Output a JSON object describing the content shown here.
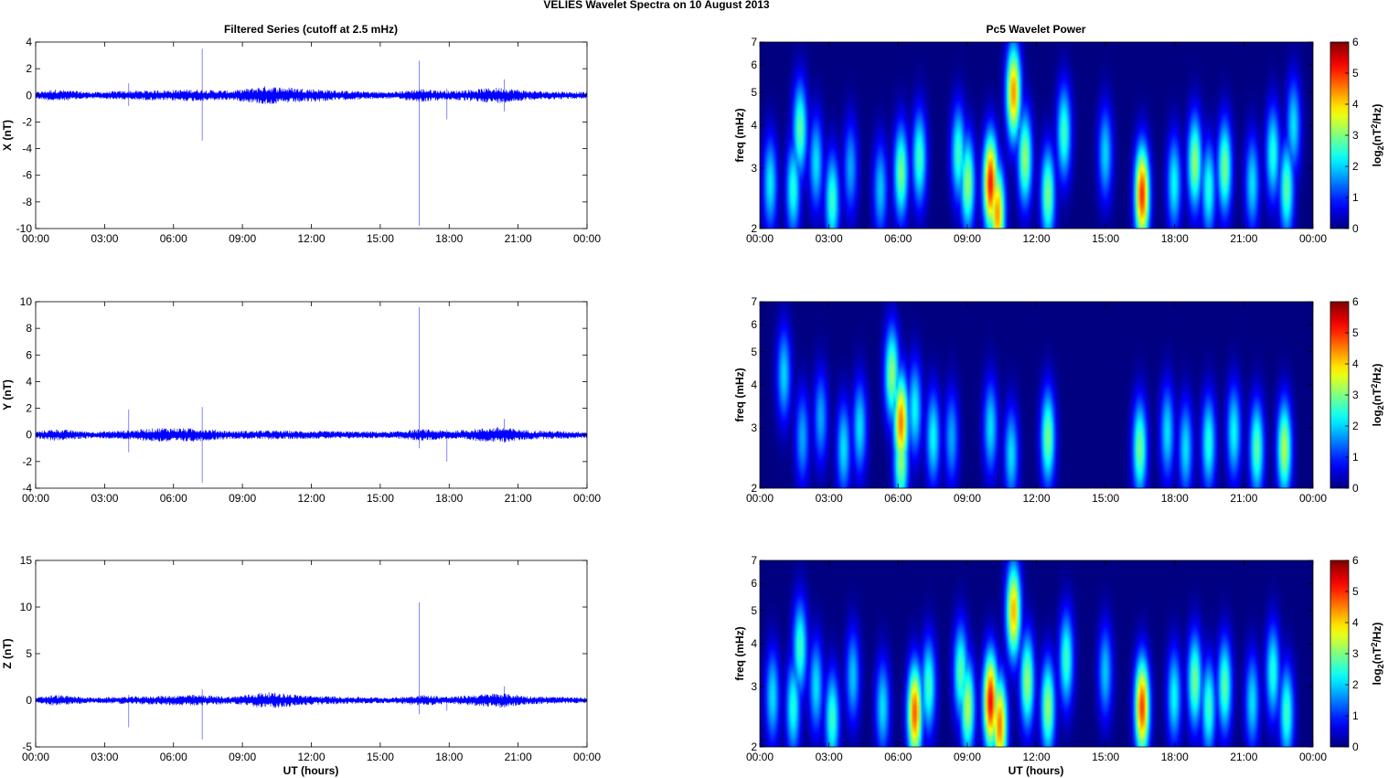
{
  "figure": {
    "suptitle": "VELIES Wavelet Spectra on 10 August    2013",
    "left_title": "Filtered Series (cutoff at 2.5 mHz)",
    "right_title": "Pc5 Wavelet Power",
    "xlabel": "UT (hours)"
  },
  "chart_data": [
    {
      "type": "line",
      "id": "series-x",
      "title": "Filtered Series (cutoff at 2.5 mHz)",
      "ylabel": "X (nT)",
      "xlabel": "",
      "xlim": [
        0,
        24
      ],
      "ylim": [
        -10,
        4
      ],
      "yticks": [
        "-10",
        "-8",
        "-6",
        "-4",
        "-2",
        "0",
        "2",
        "4"
      ],
      "xticks": [
        "00:00",
        "03:00",
        "06:00",
        "09:00",
        "12:00",
        "15:00",
        "18:00",
        "21:00",
        "00:00"
      ],
      "color": "#0000ff",
      "envelope": [
        {
          "x": 0.0,
          "amp": 0.25
        },
        {
          "x": 0.8,
          "amp": 0.45
        },
        {
          "x": 2.5,
          "amp": 0.25
        },
        {
          "x": 4.0,
          "amp": 0.35
        },
        {
          "x": 5.5,
          "amp": 0.4
        },
        {
          "x": 7.0,
          "amp": 0.45
        },
        {
          "x": 8.5,
          "amp": 0.35
        },
        {
          "x": 10.0,
          "amp": 0.7
        },
        {
          "x": 11.0,
          "amp": 0.6
        },
        {
          "x": 12.0,
          "amp": 0.5
        },
        {
          "x": 13.5,
          "amp": 0.35
        },
        {
          "x": 15.5,
          "amp": 0.25
        },
        {
          "x": 16.8,
          "amp": 0.5
        },
        {
          "x": 18.0,
          "amp": 0.35
        },
        {
          "x": 20.2,
          "amp": 0.6
        },
        {
          "x": 21.5,
          "amp": 0.35
        },
        {
          "x": 24.0,
          "amp": 0.25
        }
      ],
      "spikes": [
        {
          "x": 4.05,
          "min": -0.8,
          "max": 0.9
        },
        {
          "x": 7.25,
          "min": -3.4,
          "max": 3.5
        },
        {
          "x": 16.7,
          "min": -9.8,
          "max": 2.6
        },
        {
          "x": 17.9,
          "min": -1.8,
          "max": 0.5
        },
        {
          "x": 20.4,
          "min": -1.2,
          "max": 1.2
        }
      ]
    },
    {
      "type": "line",
      "id": "series-y",
      "title": "",
      "ylabel": "Y (nT)",
      "xlabel": "",
      "xlim": [
        0,
        24
      ],
      "ylim": [
        -4,
        10
      ],
      "yticks": [
        "-4",
        "-2",
        "0",
        "2",
        "4",
        "6",
        "8",
        "10"
      ],
      "xticks": [
        "00:00",
        "03:00",
        "06:00",
        "09:00",
        "12:00",
        "15:00",
        "18:00",
        "21:00",
        "00:00"
      ],
      "color": "#0000ff",
      "envelope": [
        {
          "x": 0.0,
          "amp": 0.25
        },
        {
          "x": 0.8,
          "amp": 0.45
        },
        {
          "x": 2.5,
          "amp": 0.25
        },
        {
          "x": 4.0,
          "amp": 0.35
        },
        {
          "x": 5.5,
          "amp": 0.55
        },
        {
          "x": 7.0,
          "amp": 0.5
        },
        {
          "x": 8.5,
          "amp": 0.3
        },
        {
          "x": 10.0,
          "amp": 0.35
        },
        {
          "x": 12.0,
          "amp": 0.3
        },
        {
          "x": 15.5,
          "amp": 0.25
        },
        {
          "x": 16.8,
          "amp": 0.45
        },
        {
          "x": 18.0,
          "amp": 0.3
        },
        {
          "x": 20.2,
          "amp": 0.6
        },
        {
          "x": 21.5,
          "amp": 0.35
        },
        {
          "x": 24.0,
          "amp": 0.25
        }
      ],
      "spikes": [
        {
          "x": 4.05,
          "min": -1.3,
          "max": 1.9
        },
        {
          "x": 7.25,
          "min": -3.6,
          "max": 2.1
        },
        {
          "x": 16.7,
          "min": -1.0,
          "max": 9.6
        },
        {
          "x": 17.9,
          "min": -2.0,
          "max": 0.4
        },
        {
          "x": 20.4,
          "min": -0.6,
          "max": 1.2
        }
      ]
    },
    {
      "type": "line",
      "id": "series-z",
      "title": "",
      "ylabel": "Z (nT)",
      "xlabel": "UT (hours)",
      "xlim": [
        0,
        24
      ],
      "ylim": [
        -5,
        15
      ],
      "yticks": [
        "-5",
        "0",
        "5",
        "10",
        "15"
      ],
      "xticks": [
        "00:00",
        "03:00",
        "06:00",
        "09:00",
        "12:00",
        "15:00",
        "18:00",
        "21:00",
        "00:00"
      ],
      "color": "#0000ff",
      "envelope": [
        {
          "x": 0.0,
          "amp": 0.3
        },
        {
          "x": 0.8,
          "amp": 0.6
        },
        {
          "x": 2.5,
          "amp": 0.3
        },
        {
          "x": 4.0,
          "amp": 0.4
        },
        {
          "x": 5.5,
          "amp": 0.5
        },
        {
          "x": 7.0,
          "amp": 0.6
        },
        {
          "x": 8.5,
          "amp": 0.4
        },
        {
          "x": 10.0,
          "amp": 0.9
        },
        {
          "x": 11.0,
          "amp": 0.7
        },
        {
          "x": 12.0,
          "amp": 0.5
        },
        {
          "x": 13.5,
          "amp": 0.4
        },
        {
          "x": 15.5,
          "amp": 0.3
        },
        {
          "x": 16.8,
          "amp": 0.6
        },
        {
          "x": 18.0,
          "amp": 0.4
        },
        {
          "x": 20.2,
          "amp": 0.8
        },
        {
          "x": 21.5,
          "amp": 0.45
        },
        {
          "x": 24.0,
          "amp": 0.3
        }
      ],
      "spikes": [
        {
          "x": 4.05,
          "min": -2.9,
          "max": 0.6
        },
        {
          "x": 7.25,
          "min": -4.2,
          "max": 1.2
        },
        {
          "x": 16.7,
          "min": -1.5,
          "max": 10.5
        },
        {
          "x": 17.9,
          "min": -1.1,
          "max": 0.3
        },
        {
          "x": 20.4,
          "min": -0.8,
          "max": 1.5
        }
      ]
    },
    {
      "type": "heatmap",
      "id": "power-x",
      "title": "Pc5 Wavelet Power",
      "ylabel": "freq (mHz)",
      "xlabel": "",
      "xlim": [
        0,
        24
      ],
      "ylim": [
        2,
        7
      ],
      "yscale": "log",
      "yticks": [
        "2",
        "3",
        "4",
        "5",
        "6",
        "7"
      ],
      "xticks": [
        "00:00",
        "03:00",
        "06:00",
        "09:00",
        "12:00",
        "15:00",
        "18:00",
        "21:00",
        "00:00"
      ],
      "colormap": "jet",
      "clim": [
        0,
        6
      ],
      "cbar_ticks": [
        "0",
        "1",
        "2",
        "3",
        "4",
        "5",
        "6"
      ],
      "cbar_label": "log2(nT2/Hz)",
      "blobs": [
        {
          "x": 0.4,
          "f": 2.7,
          "p": 2.5
        },
        {
          "x": 1.4,
          "f": 2.6,
          "p": 2.8
        },
        {
          "x": 1.7,
          "f": 3.9,
          "p": 3.2
        },
        {
          "x": 2.4,
          "f": 3.1,
          "p": 2.4
        },
        {
          "x": 3.1,
          "f": 2.4,
          "p": 3.0
        },
        {
          "x": 3.9,
          "f": 3.0,
          "p": 2.0
        },
        {
          "x": 5.2,
          "f": 2.6,
          "p": 2.2
        },
        {
          "x": 6.1,
          "f": 2.9,
          "p": 3.4
        },
        {
          "x": 6.9,
          "f": 3.2,
          "p": 3.0
        },
        {
          "x": 8.6,
          "f": 3.3,
          "p": 3.0
        },
        {
          "x": 9.0,
          "f": 2.7,
          "p": 3.6
        },
        {
          "x": 10.0,
          "f": 2.7,
          "p": 5.9
        },
        {
          "x": 10.3,
          "f": 2.2,
          "p": 5.0
        },
        {
          "x": 11.0,
          "f": 5.0,
          "p": 5.0
        },
        {
          "x": 11.5,
          "f": 3.2,
          "p": 3.6
        },
        {
          "x": 12.5,
          "f": 2.5,
          "p": 3.4
        },
        {
          "x": 13.2,
          "f": 3.8,
          "p": 3.0
        },
        {
          "x": 15.0,
          "f": 3.3,
          "p": 2.3
        },
        {
          "x": 16.6,
          "f": 2.5,
          "p": 5.7
        },
        {
          "x": 18.0,
          "f": 2.7,
          "p": 2.6
        },
        {
          "x": 18.9,
          "f": 3.1,
          "p": 3.6
        },
        {
          "x": 19.5,
          "f": 2.6,
          "p": 2.8
        },
        {
          "x": 20.2,
          "f": 3.0,
          "p": 3.4
        },
        {
          "x": 21.4,
          "f": 2.7,
          "p": 2.4
        },
        {
          "x": 22.3,
          "f": 3.3,
          "p": 2.8
        },
        {
          "x": 22.9,
          "f": 2.6,
          "p": 3.2
        },
        {
          "x": 23.2,
          "f": 4.0,
          "p": 2.4
        }
      ]
    },
    {
      "type": "heatmap",
      "id": "power-y",
      "title": "",
      "ylabel": "freq (mHz)",
      "xlabel": "",
      "xlim": [
        0,
        24
      ],
      "ylim": [
        2,
        7
      ],
      "yscale": "log",
      "yticks": [
        "2",
        "3",
        "4",
        "5",
        "6",
        "7"
      ],
      "xticks": [
        "00:00",
        "03:00",
        "06:00",
        "09:00",
        "12:00",
        "15:00",
        "18:00",
        "21:00",
        "00:00"
      ],
      "colormap": "jet",
      "clim": [
        0,
        6
      ],
      "cbar_ticks": [
        "0",
        "1",
        "2",
        "3",
        "4",
        "5",
        "6"
      ],
      "cbar_label": "log2(nT2/Hz)",
      "blobs": [
        {
          "x": 1.0,
          "f": 4.3,
          "p": 2.3
        },
        {
          "x": 1.8,
          "f": 2.8,
          "p": 2.0
        },
        {
          "x": 2.6,
          "f": 3.2,
          "p": 2.0
        },
        {
          "x": 3.6,
          "f": 2.6,
          "p": 2.4
        },
        {
          "x": 4.3,
          "f": 3.0,
          "p": 2.4
        },
        {
          "x": 5.7,
          "f": 4.3,
          "p": 3.6
        },
        {
          "x": 6.1,
          "f": 3.1,
          "p": 5.2
        },
        {
          "x": 6.1,
          "f": 2.4,
          "p": 3.6
        },
        {
          "x": 6.7,
          "f": 3.4,
          "p": 2.6
        },
        {
          "x": 7.5,
          "f": 2.8,
          "p": 2.6
        },
        {
          "x": 8.3,
          "f": 2.8,
          "p": 2.0
        },
        {
          "x": 10.0,
          "f": 3.0,
          "p": 2.4
        },
        {
          "x": 10.9,
          "f": 2.5,
          "p": 2.4
        },
        {
          "x": 12.5,
          "f": 2.8,
          "p": 3.4
        },
        {
          "x": 16.5,
          "f": 2.6,
          "p": 3.4
        },
        {
          "x": 17.7,
          "f": 2.9,
          "p": 2.4
        },
        {
          "x": 18.5,
          "f": 2.6,
          "p": 2.4
        },
        {
          "x": 19.5,
          "f": 2.7,
          "p": 2.8
        },
        {
          "x": 20.6,
          "f": 2.9,
          "p": 2.6
        },
        {
          "x": 21.6,
          "f": 2.6,
          "p": 3.2
        },
        {
          "x": 22.8,
          "f": 2.6,
          "p": 3.8
        }
      ]
    },
    {
      "type": "heatmap",
      "id": "power-z",
      "title": "",
      "ylabel": "freq (mHz)",
      "xlabel": "UT (hours)",
      "xlim": [
        0,
        24
      ],
      "ylim": [
        2,
        7
      ],
      "yscale": "log",
      "yticks": [
        "2",
        "3",
        "4",
        "5",
        "6",
        "7"
      ],
      "xticks": [
        "00:00",
        "03:00",
        "06:00",
        "09:00",
        "12:00",
        "15:00",
        "18:00",
        "21:00",
        "00:00"
      ],
      "colormap": "jet",
      "clim": [
        0,
        6
      ],
      "cbar_ticks": [
        "0",
        "1",
        "2",
        "3",
        "4",
        "5",
        "6"
      ],
      "cbar_label": "log2(nT2/Hz)",
      "blobs": [
        {
          "x": 0.5,
          "f": 2.8,
          "p": 2.4
        },
        {
          "x": 1.4,
          "f": 2.6,
          "p": 2.8
        },
        {
          "x": 1.7,
          "f": 3.9,
          "p": 3.0
        },
        {
          "x": 2.4,
          "f": 3.0,
          "p": 2.4
        },
        {
          "x": 3.1,
          "f": 2.4,
          "p": 3.0
        },
        {
          "x": 4.0,
          "f": 3.2,
          "p": 2.2
        },
        {
          "x": 5.3,
          "f": 2.6,
          "p": 2.4
        },
        {
          "x": 6.7,
          "f": 2.5,
          "p": 5.4
        },
        {
          "x": 7.3,
          "f": 3.0,
          "p": 3.0
        },
        {
          "x": 8.7,
          "f": 3.3,
          "p": 3.2
        },
        {
          "x": 9.0,
          "f": 2.6,
          "p": 3.8
        },
        {
          "x": 10.0,
          "f": 2.7,
          "p": 6.0
        },
        {
          "x": 10.4,
          "f": 2.3,
          "p": 5.2
        },
        {
          "x": 11.0,
          "f": 5.0,
          "p": 4.8
        },
        {
          "x": 11.6,
          "f": 3.1,
          "p": 3.6
        },
        {
          "x": 12.5,
          "f": 2.6,
          "p": 3.6
        },
        {
          "x": 13.3,
          "f": 3.6,
          "p": 3.0
        },
        {
          "x": 15.0,
          "f": 3.3,
          "p": 2.2
        },
        {
          "x": 16.6,
          "f": 2.6,
          "p": 5.6
        },
        {
          "x": 18.0,
          "f": 2.8,
          "p": 2.6
        },
        {
          "x": 18.9,
          "f": 3.1,
          "p": 3.4
        },
        {
          "x": 19.5,
          "f": 2.6,
          "p": 3.0
        },
        {
          "x": 20.2,
          "f": 3.0,
          "p": 3.2
        },
        {
          "x": 21.4,
          "f": 2.7,
          "p": 2.4
        },
        {
          "x": 22.3,
          "f": 3.3,
          "p": 2.8
        },
        {
          "x": 22.9,
          "f": 2.5,
          "p": 3.0
        }
      ]
    }
  ]
}
